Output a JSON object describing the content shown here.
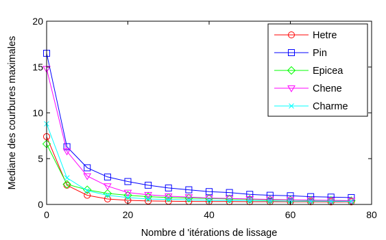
{
  "chart_data": {
    "type": "line",
    "title": "",
    "xlabel": "Nombre d 'itérations de lissage",
    "ylabel": "Mediane des courbures maximales",
    "xlim": [
      0,
      80
    ],
    "ylim": [
      0,
      20
    ],
    "xticks": [
      "0",
      "20",
      "40",
      "60",
      "80"
    ],
    "yticks": [
      "0",
      "5",
      "10",
      "15",
      "20"
    ],
    "grid": false,
    "legend_position": "top-right",
    "x": [
      0,
      5,
      10,
      15,
      20,
      25,
      30,
      35,
      40,
      45,
      50,
      55,
      60,
      65,
      70,
      75
    ],
    "series": [
      {
        "name": "Hetre",
        "color": "#ff0000",
        "marker": "circle",
        "values": [
          7.4,
          2.1,
          1.0,
          0.6,
          0.45,
          0.38,
          0.35,
          0.33,
          0.32,
          0.31,
          0.3,
          0.3,
          0.29,
          0.29,
          0.28,
          0.28
        ]
      },
      {
        "name": "Pin",
        "color": "#0000ff",
        "marker": "square",
        "values": [
          16.5,
          6.3,
          4.0,
          3.0,
          2.5,
          2.1,
          1.8,
          1.6,
          1.4,
          1.3,
          1.1,
          1.0,
          0.95,
          0.85,
          0.8,
          0.75
        ]
      },
      {
        "name": "Epicea",
        "color": "#00ff00",
        "marker": "diamond",
        "values": [
          6.6,
          2.2,
          1.6,
          1.2,
          1.0,
          0.85,
          0.75,
          0.7,
          0.65,
          0.6,
          0.55,
          0.5,
          0.48,
          0.45,
          0.43,
          0.4
        ]
      },
      {
        "name": "Chene",
        "color": "#ff00ff",
        "marker": "triangle-down",
        "values": [
          14.8,
          5.8,
          3.1,
          2.0,
          1.3,
          1.05,
          0.9,
          0.8,
          0.7,
          0.65,
          0.6,
          0.55,
          0.5,
          0.48,
          0.45,
          0.42
        ]
      },
      {
        "name": "Charme",
        "color": "#00ffff",
        "marker": "x",
        "values": [
          8.8,
          2.9,
          1.5,
          1.0,
          0.75,
          0.6,
          0.55,
          0.5,
          0.45,
          0.42,
          0.4,
          0.38,
          0.36,
          0.35,
          0.34,
          0.33
        ]
      }
    ]
  }
}
